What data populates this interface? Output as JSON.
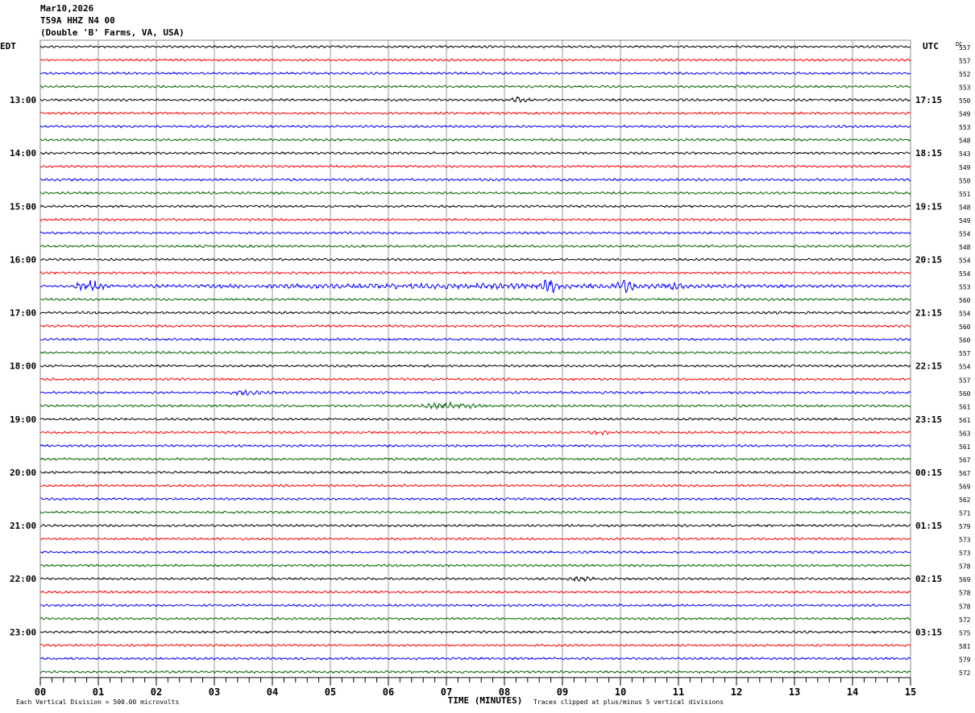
{
  "header": {
    "date": "Mar10,2026",
    "station": "T59A HHZ N4 00",
    "location": "(Double 'B' Farms, VA, USA)"
  },
  "chart_data": {
    "type": "line",
    "title": "",
    "left_timezone": "EDT",
    "right_timezone": "UTC",
    "dc_label": "DC",
    "xlabel": "TIME (MINUTES)",
    "xlim": [
      0,
      15
    ],
    "x_ticks": [
      "00",
      "01",
      "02",
      "03",
      "04",
      "05",
      "06",
      "07",
      "08",
      "09",
      "10",
      "11",
      "12",
      "13",
      "14",
      "15"
    ],
    "left_hour_labels": [
      "13:00",
      "14:00",
      "15:00",
      "16:00",
      "17:00",
      "18:00",
      "19:00",
      "20:00",
      "21:00",
      "22:00",
      "23:00"
    ],
    "right_hour_labels": [
      "17:15",
      "18:15",
      "19:15",
      "20:15",
      "21:15",
      "22:15",
      "23:15",
      "00:15",
      "01:15",
      "02:15",
      "03:15"
    ],
    "trace_colors": [
      "#000000",
      "#ff0000",
      "#0000ff",
      "#006400"
    ],
    "dc_values": [
      557,
      557,
      552,
      553,
      550,
      549,
      553,
      548,
      543,
      549,
      550,
      551,
      548,
      549,
      554,
      548,
      554,
      554,
      553,
      560,
      554,
      560,
      560,
      557,
      554,
      557,
      560,
      561,
      561,
      563,
      561,
      567,
      567,
      569,
      562,
      571,
      579,
      573,
      573,
      578,
      569,
      578,
      578,
      572,
      575,
      581,
      579,
      572
    ],
    "events": [
      {
        "trace": 4,
        "start_min": 8.1,
        "end_min": 8.5,
        "amplitude": 2.5
      },
      {
        "trace": 18,
        "start_min": 0.0,
        "end_min": 15.0,
        "amplitude": 1.0
      },
      {
        "trace": 18,
        "start_min": 0.5,
        "end_min": 1.2,
        "amplitude": 3.5
      },
      {
        "trace": 18,
        "start_min": 8.6,
        "end_min": 9.0,
        "amplitude": 4.0
      },
      {
        "trace": 18,
        "start_min": 9.9,
        "end_min": 10.3,
        "amplitude": 3.0
      },
      {
        "trace": 18,
        "start_min": 10.7,
        "end_min": 11.1,
        "amplitude": 2.5
      },
      {
        "trace": 26,
        "start_min": 3.2,
        "end_min": 3.9,
        "amplitude": 1.2
      },
      {
        "trace": 27,
        "start_min": 6.4,
        "end_min": 7.8,
        "amplitude": 1.5
      },
      {
        "trace": 29,
        "start_min": 9.4,
        "end_min": 9.9,
        "amplitude": 1.0
      },
      {
        "trace": 40,
        "start_min": 9.0,
        "end_min": 9.6,
        "amplitude": 1.0
      }
    ],
    "scale_note": "Each Vertical Division =  500.00 microvolts",
    "clip_note": "Traces clipped at plus/minus 5 vertical divisions",
    "grid": true
  }
}
